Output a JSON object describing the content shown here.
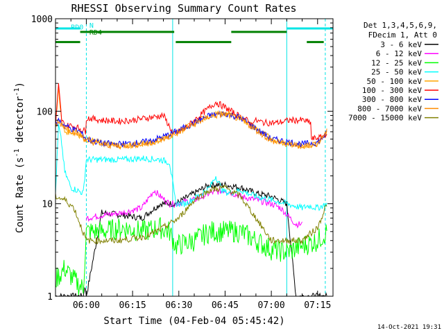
{
  "chart_data": {
    "type": "line",
    "title": "RHESSI Observing Summary Count Rates",
    "xlabel": "Start Time (04-Feb-04 05:45:42)",
    "ylabel_main": "Count Rate (s",
    "ylabel_sup1": "-1",
    "ylabel_mid": " detector",
    "ylabel_sup2": "-1",
    "ylabel_end": ")",
    "yscale": "log",
    "ylim": [
      1,
      1000
    ],
    "xlim_minutes": [
      -10,
      80
    ],
    "y_tick_labels": [
      "1",
      "10",
      "100",
      "1000"
    ],
    "x_tick_labels": [
      "06:00",
      "06:15",
      "06:30",
      "06:45",
      "07:00",
      "07:15"
    ],
    "x_tick_values": [
      0,
      15,
      30,
      45,
      60,
      75
    ],
    "legend_position": "right",
    "legend_header": [
      "Det 1,3,4,5,6,9,",
      "FDecim 1, Att 0"
    ],
    "timestamp": "14-Oct-2021 19:31",
    "vlines": [
      {
        "t": -10,
        "style": "solid"
      },
      {
        "t": 0,
        "style": "dashed"
      },
      {
        "t": 28,
        "style": "solid"
      },
      {
        "t": 65,
        "style": "solid"
      },
      {
        "t": 77.5,
        "style": "dashed"
      }
    ],
    "flags": [
      {
        "label": "N",
        "color": "#00e5e5",
        "y": 1000,
        "segments": [
          [
            -10,
            -2
          ],
          [
            65,
            80
          ]
        ],
        "label_t": 1
      },
      {
        "label": "RD0",
        "color": "#00e5e5",
        "y": 820,
        "segments": [],
        "label_t": -5
      },
      {
        "label": "RD4",
        "color": "#008000",
        "y": 720,
        "segments": [
          [
            -2,
            28.5
          ],
          [
            47,
            65
          ]
        ],
        "label_t": 1
      },
      {
        "label": "",
        "color": "#008000",
        "y": 560,
        "segments": [
          [
            -10,
            -2
          ],
          [
            29,
            47
          ],
          [
            71.5,
            77
          ]
        ],
        "label_t": 0
      }
    ],
    "series": [
      {
        "name": "3 - 6 keV",
        "color": "#000000",
        "t": [
          -10,
          -5,
          -2,
          -1,
          -0.5,
          0,
          5,
          12,
          18,
          24,
          27,
          29,
          35,
          40,
          45,
          50,
          55,
          60,
          65,
          68,
          72,
          75,
          78
        ],
        "values": [
          1,
          1,
          1,
          1,
          1.3,
          1,
          8,
          7.5,
          7,
          10,
          10,
          10,
          13,
          16,
          16,
          15,
          13,
          12,
          10,
          1,
          1,
          1,
          1
        ]
      },
      {
        "name": "6 - 12 keV",
        "color": "#ff00ff",
        "t": [
          0,
          5,
          12,
          18,
          22,
          24,
          27,
          29,
          35,
          40,
          45,
          50,
          55,
          60,
          63,
          68,
          70
        ],
        "values": [
          7,
          7.5,
          8,
          9,
          14,
          12,
          10,
          10,
          11,
          13,
          14,
          12,
          11,
          10,
          9,
          6,
          6
        ]
      },
      {
        "name": "12 - 25 keV",
        "color": "#00ff00",
        "t": [
          -10,
          -7,
          -4,
          -1,
          0,
          5,
          12,
          18,
          24,
          27,
          29,
          35,
          40,
          45,
          50,
          55,
          60,
          65,
          70,
          75,
          78
        ],
        "values": [
          1.5,
          2,
          1.5,
          1.2,
          5,
          5,
          5.5,
          5,
          5.5,
          5,
          3.5,
          4,
          5,
          5,
          5,
          4,
          3.2,
          3,
          3.5,
          4,
          5
        ]
      },
      {
        "name": "25 - 50 keV",
        "color": "#00ffff",
        "t": [
          -10,
          -9,
          -8,
          -7,
          -5,
          -3,
          -1,
          0,
          5,
          12,
          18,
          24,
          27,
          29,
          32,
          36,
          40,
          42,
          44,
          46,
          50,
          55,
          60,
          65,
          70,
          72,
          75,
          78
        ],
        "values": [
          13,
          70,
          45,
          22,
          15,
          14,
          13,
          30,
          30,
          30,
          31,
          30,
          28,
          10,
          10,
          12,
          15,
          20,
          14,
          13,
          14,
          12,
          11,
          10,
          9,
          9.5,
          9,
          10
        ]
      },
      {
        "name": "50 - 100 keV",
        "color": "#ffa500",
        "t": [
          -10,
          -9,
          -8,
          -7,
          -5,
          -2,
          0,
          5,
          10,
          15,
          20,
          25,
          30,
          35,
          40,
          45,
          50,
          55,
          60,
          65,
          70,
          75,
          78
        ],
        "values": [
          70,
          180,
          75,
          60,
          60,
          55,
          50,
          45,
          43,
          43,
          45,
          50,
          60,
          75,
          90,
          95,
          85,
          65,
          50,
          45,
          42,
          45,
          58
        ]
      },
      {
        "name": "100 - 300 keV",
        "color": "#ff0000",
        "t": [
          -10,
          -9,
          -8,
          -7,
          -5,
          -2,
          -0.1,
          0,
          5,
          10,
          15,
          20,
          25,
          27.9,
          28,
          32,
          36,
          40,
          42,
          45,
          48,
          52,
          53.9,
          54,
          58,
          62,
          66,
          70,
          72.9,
          73,
          76,
          78
        ],
        "values": [
          70,
          190,
          80,
          70,
          70,
          65,
          60,
          85,
          80,
          78,
          80,
          85,
          90,
          60,
          55,
          65,
          85,
          110,
          125,
          110,
          95,
          80,
          70,
          80,
          75,
          75,
          80,
          80,
          75,
          50,
          52,
          58
        ]
      },
      {
        "name": "300 - 800 keV",
        "color": "#0000ff",
        "t": [
          -10,
          -9,
          -8,
          -7,
          -5,
          -2,
          0,
          5,
          10,
          15,
          20,
          25,
          30,
          35,
          40,
          45,
          50,
          55,
          60,
          65,
          70,
          75,
          78
        ],
        "values": [
          70,
          80,
          75,
          70,
          65,
          60,
          50,
          45,
          44,
          45,
          47,
          53,
          62,
          75,
          90,
          95,
          85,
          65,
          50,
          47,
          44,
          46,
          58
        ]
      },
      {
        "name": "800 - 7000 keV",
        "color": "#ff8c00",
        "t": [
          -10,
          -9,
          -8,
          -7,
          -5,
          -2,
          0,
          5,
          10,
          15,
          20,
          25,
          30,
          35,
          40,
          45,
          50,
          55,
          60,
          65,
          70,
          75,
          78
        ],
        "values": [
          72,
          75,
          72,
          68,
          62,
          56,
          48,
          44,
          42,
          43,
          45,
          50,
          60,
          72,
          88,
          93,
          82,
          63,
          48,
          44,
          42,
          45,
          60
        ]
      },
      {
        "name": "7000 - 15000 keV",
        "color": "#808000",
        "t": [
          -10,
          -7,
          -4,
          -2,
          0,
          5,
          10,
          15,
          20,
          25,
          30,
          35,
          40,
          45,
          50,
          55,
          60,
          65,
          70,
          75,
          78
        ],
        "values": [
          12,
          11,
          9,
          6,
          4,
          4,
          4,
          4.2,
          4.5,
          5.5,
          7,
          11,
          14,
          15,
          12,
          7,
          4,
          4,
          4,
          5.5,
          10
        ]
      }
    ]
  }
}
